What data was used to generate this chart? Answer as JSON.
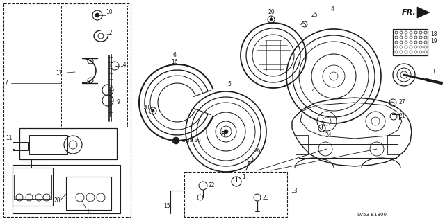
{
  "bg_color": "#ffffff",
  "diagram_color": "#1a1a1a",
  "figsize": [
    6.4,
    3.19
  ],
  "dpi": 100,
  "fr_text": "FR.",
  "copyright": "SV53-B1800"
}
